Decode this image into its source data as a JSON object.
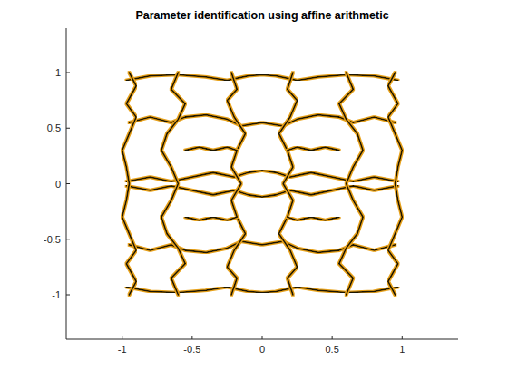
{
  "chart_data": {
    "type": "line",
    "title": "Parameter identification using affine arithmetic",
    "color": "#1f1600",
    "xlim": [
      -1.4,
      1.4
    ],
    "ylim": [
      -1.4,
      1.4
    ],
    "xticks": [
      -1,
      -0.5,
      0,
      0.5,
      1
    ],
    "yticks": [
      -1,
      -0.5,
      0,
      0.5,
      1
    ],
    "series": [
      {
        "x": [
          -0.97,
          -0.8,
          -0.6,
          -0.4,
          -0.25,
          -0.1,
          0,
          0.1,
          0.25,
          0.4,
          0.6,
          0.8,
          0.97
        ],
        "values": [
          0.93,
          0.97,
          0.98,
          0.96,
          0.93,
          0.97,
          0.98,
          0.97,
          0.93,
          0.96,
          0.98,
          0.97,
          0.93
        ]
      },
      {
        "x": [
          -0.97,
          -0.8,
          -0.6,
          -0.4,
          -0.25,
          -0.1,
          0,
          0.1,
          0.25,
          0.4,
          0.6,
          0.8,
          0.97
        ],
        "values": [
          -0.93,
          -0.97,
          -0.98,
          -0.96,
          -0.93,
          -0.97,
          -0.98,
          -0.97,
          -0.93,
          -0.96,
          -0.98,
          -0.97,
          -0.93
        ]
      },
      {
        "x": [
          -0.95,
          -0.8,
          -0.65,
          -0.55,
          -0.4,
          -0.25,
          -0.15,
          0,
          0.15,
          0.25,
          0.4,
          0.55,
          0.65,
          0.8,
          0.95
        ],
        "values": [
          0.55,
          0.6,
          0.55,
          0.6,
          0.62,
          0.58,
          0.52,
          0.55,
          0.52,
          0.58,
          0.62,
          0.6,
          0.55,
          0.6,
          0.55
        ]
      },
      {
        "x": [
          -0.95,
          -0.8,
          -0.65,
          -0.55,
          -0.4,
          -0.25,
          -0.15,
          0,
          0.15,
          0.25,
          0.4,
          0.55,
          0.65,
          0.8,
          0.95
        ],
        "values": [
          -0.55,
          -0.6,
          -0.55,
          -0.6,
          -0.62,
          -0.58,
          -0.52,
          -0.55,
          -0.52,
          -0.58,
          -0.62,
          -0.6,
          -0.55,
          -0.6,
          -0.55
        ]
      },
      {
        "x": [
          -0.97,
          -0.8,
          -0.65,
          -0.5,
          -0.35,
          -0.2,
          -0.1,
          0,
          0.1,
          0.2,
          0.35,
          0.5,
          0.65,
          0.8,
          0.97
        ],
        "values": [
          0.02,
          0.06,
          0.02,
          0.06,
          0.1,
          0.06,
          0.1,
          0.12,
          0.1,
          0.06,
          0.1,
          0.06,
          0.02,
          0.06,
          0.02
        ]
      },
      {
        "x": [
          -0.97,
          -0.8,
          -0.65,
          -0.5,
          -0.35,
          -0.2,
          -0.1,
          0,
          0.1,
          0.2,
          0.35,
          0.5,
          0.65,
          0.8,
          0.97
        ],
        "values": [
          -0.02,
          -0.06,
          -0.02,
          -0.06,
          -0.1,
          -0.06,
          -0.1,
          -0.12,
          -0.1,
          -0.06,
          -0.1,
          -0.06,
          -0.02,
          -0.06,
          -0.02
        ]
      },
      {
        "x": [
          0.95,
          0.9,
          0.97,
          0.9,
          0.95,
          1.0,
          0.97,
          0.95,
          0.97,
          1.0,
          0.95,
          0.9,
          0.97,
          0.9,
          0.95
        ],
        "values": [
          -1,
          -0.88,
          -0.72,
          -0.6,
          -0.45,
          -0.3,
          -0.15,
          0,
          0.15,
          0.3,
          0.45,
          0.6,
          0.72,
          0.88,
          1
        ]
      },
      {
        "x": [
          -0.95,
          -0.9,
          -0.97,
          -0.9,
          -0.95,
          -1.0,
          -0.97,
          -0.95,
          -0.97,
          -1.0,
          -0.95,
          -0.9,
          -0.97,
          -0.9,
          -0.95
        ],
        "values": [
          -1,
          -0.88,
          -0.72,
          -0.6,
          -0.45,
          -0.3,
          -0.15,
          0,
          0.15,
          0.3,
          0.45,
          0.6,
          0.72,
          0.88,
          1
        ]
      },
      {
        "x": [
          0.6,
          0.65,
          0.55,
          0.6,
          0.68,
          0.72,
          0.65,
          0.6,
          0.65,
          0.72,
          0.68,
          0.6,
          0.55,
          0.65,
          0.6
        ],
        "values": [
          -1,
          -0.85,
          -0.72,
          -0.58,
          -0.45,
          -0.3,
          -0.15,
          0,
          0.15,
          0.3,
          0.45,
          0.58,
          0.72,
          0.85,
          1
        ]
      },
      {
        "x": [
          -0.6,
          -0.65,
          -0.55,
          -0.6,
          -0.68,
          -0.72,
          -0.65,
          -0.6,
          -0.65,
          -0.72,
          -0.68,
          -0.6,
          -0.55,
          -0.65,
          -0.6
        ],
        "values": [
          -1,
          -0.85,
          -0.72,
          -0.58,
          -0.45,
          -0.3,
          -0.15,
          0,
          0.15,
          0.3,
          0.45,
          0.58,
          0.72,
          0.85,
          1
        ]
      },
      {
        "x": [
          0.22,
          0.18,
          0.25,
          0.2,
          0.12,
          0.18,
          0.22,
          0.15,
          0.22,
          0.18,
          0.12,
          0.2,
          0.25,
          0.18,
          0.22
        ],
        "values": [
          -1,
          -0.85,
          -0.75,
          -0.6,
          -0.45,
          -0.3,
          -0.15,
          0,
          0.15,
          0.3,
          0.45,
          0.6,
          0.75,
          0.85,
          1
        ]
      },
      {
        "x": [
          -0.22,
          -0.18,
          -0.25,
          -0.2,
          -0.12,
          -0.18,
          -0.22,
          -0.15,
          -0.22,
          -0.18,
          -0.12,
          -0.2,
          -0.25,
          -0.18,
          -0.22
        ],
        "values": [
          -1,
          -0.85,
          -0.75,
          -0.6,
          -0.45,
          -0.3,
          -0.15,
          0,
          0.15,
          0.3,
          0.45,
          0.6,
          0.75,
          0.85,
          1
        ]
      },
      {
        "x": [
          -0.55,
          -0.45,
          -0.35,
          -0.25,
          -0.18
        ],
        "values": [
          0.3,
          0.33,
          0.3,
          0.33,
          0.3
        ]
      },
      {
        "x": [
          0.18,
          0.25,
          0.35,
          0.45,
          0.55
        ],
        "values": [
          0.3,
          0.33,
          0.3,
          0.33,
          0.3
        ]
      },
      {
        "x": [
          -0.55,
          -0.45,
          -0.35,
          -0.25,
          -0.18
        ],
        "values": [
          -0.3,
          -0.33,
          -0.3,
          -0.33,
          -0.3
        ]
      },
      {
        "x": [
          0.18,
          0.25,
          0.35,
          0.45,
          0.55
        ],
        "values": [
          -0.3,
          -0.33,
          -0.3,
          -0.33,
          -0.3
        ]
      }
    ]
  }
}
